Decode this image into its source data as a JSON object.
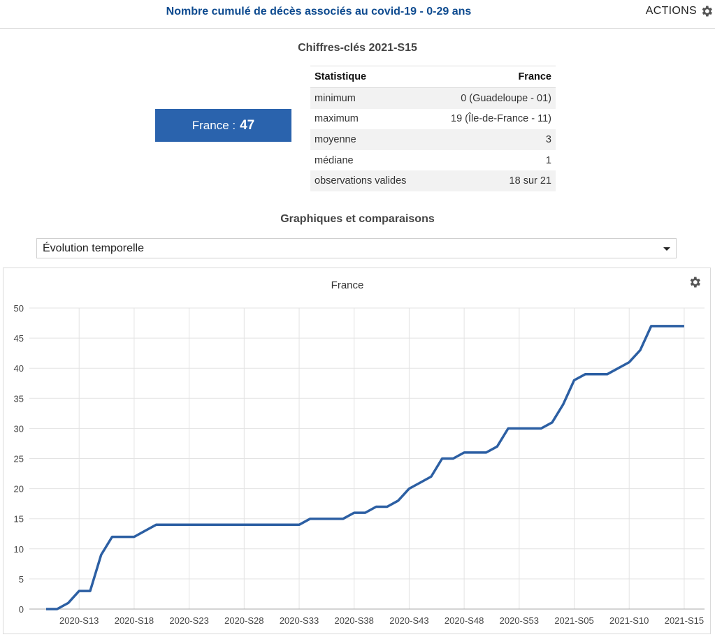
{
  "header": {
    "title": "Nombre cumulé de décès associés au covid-19 - 0-29 ans",
    "actions_label": "ACTIONS"
  },
  "key_figures": {
    "heading": "Chiffres-clés 2021-S15",
    "france_label": "France : ",
    "france_value": "47",
    "table": {
      "col_statistic": "Statistique",
      "col_france": "France",
      "rows": [
        {
          "label": "minimum",
          "value": "0 (Guadeloupe - 01)"
        },
        {
          "label": "maximum",
          "value": "19 (Île-de-France - 11)"
        },
        {
          "label": "moyenne",
          "value": "3"
        },
        {
          "label": "médiane",
          "value": "1"
        },
        {
          "label": "observations valides",
          "value": "18 sur 21"
        }
      ]
    }
  },
  "charts_section": {
    "heading": "Graphiques et comparaisons",
    "select_value": "Évolution temporelle"
  },
  "colors": {
    "accent": "#2a63ad",
    "title": "#0d4a8f",
    "line": "#2c5fa3",
    "grid": "#e3e3e3"
  },
  "icons": {
    "actions": "gear-icon",
    "chart_settings": "gear-icon",
    "dropdown": "caret-down-icon"
  },
  "chart_data": {
    "type": "line",
    "title": "France",
    "ylim": [
      0,
      50
    ],
    "yticks": [
      0,
      5,
      10,
      15,
      20,
      25,
      30,
      35,
      40,
      45,
      50
    ],
    "x_tick_labels": [
      "2020-S13",
      "2020-S18",
      "2020-S23",
      "2020-S28",
      "2020-S33",
      "2020-S38",
      "2020-S43",
      "2020-S48",
      "2020-S53",
      "2021-S05",
      "2021-S10",
      "2021-S15"
    ],
    "grid": true,
    "x": [
      "2020-S10",
      "2020-S11",
      "2020-S12",
      "2020-S13",
      "2020-S14",
      "2020-S15",
      "2020-S16",
      "2020-S17",
      "2020-S18",
      "2020-S19",
      "2020-S20",
      "2020-S21",
      "2020-S22",
      "2020-S23",
      "2020-S24",
      "2020-S25",
      "2020-S26",
      "2020-S27",
      "2020-S28",
      "2020-S29",
      "2020-S30",
      "2020-S31",
      "2020-S32",
      "2020-S33",
      "2020-S34",
      "2020-S35",
      "2020-S36",
      "2020-S37",
      "2020-S38",
      "2020-S39",
      "2020-S40",
      "2020-S41",
      "2020-S42",
      "2020-S43",
      "2020-S44",
      "2020-S45",
      "2020-S46",
      "2020-S47",
      "2020-S48",
      "2020-S49",
      "2020-S50",
      "2020-S51",
      "2020-S52",
      "2020-S53",
      "2021-S01",
      "2021-S02",
      "2021-S03",
      "2021-S04",
      "2021-S05",
      "2021-S06",
      "2021-S07",
      "2021-S08",
      "2021-S09",
      "2021-S10",
      "2021-S11",
      "2021-S12",
      "2021-S13",
      "2021-S14",
      "2021-S15"
    ],
    "series": [
      {
        "values": [
          0,
          0,
          1,
          3,
          3,
          9,
          12,
          12,
          12,
          13,
          14,
          14,
          14,
          14,
          14,
          14,
          14,
          14,
          14,
          14,
          14,
          14,
          14,
          14,
          15,
          15,
          15,
          15,
          16,
          16,
          17,
          17,
          18,
          20,
          21,
          22,
          25,
          25,
          26,
          26,
          26,
          27,
          30,
          30,
          30,
          30,
          31,
          34,
          38,
          39,
          39,
          39,
          40,
          41,
          43,
          47,
          47,
          47,
          47
        ]
      }
    ]
  }
}
